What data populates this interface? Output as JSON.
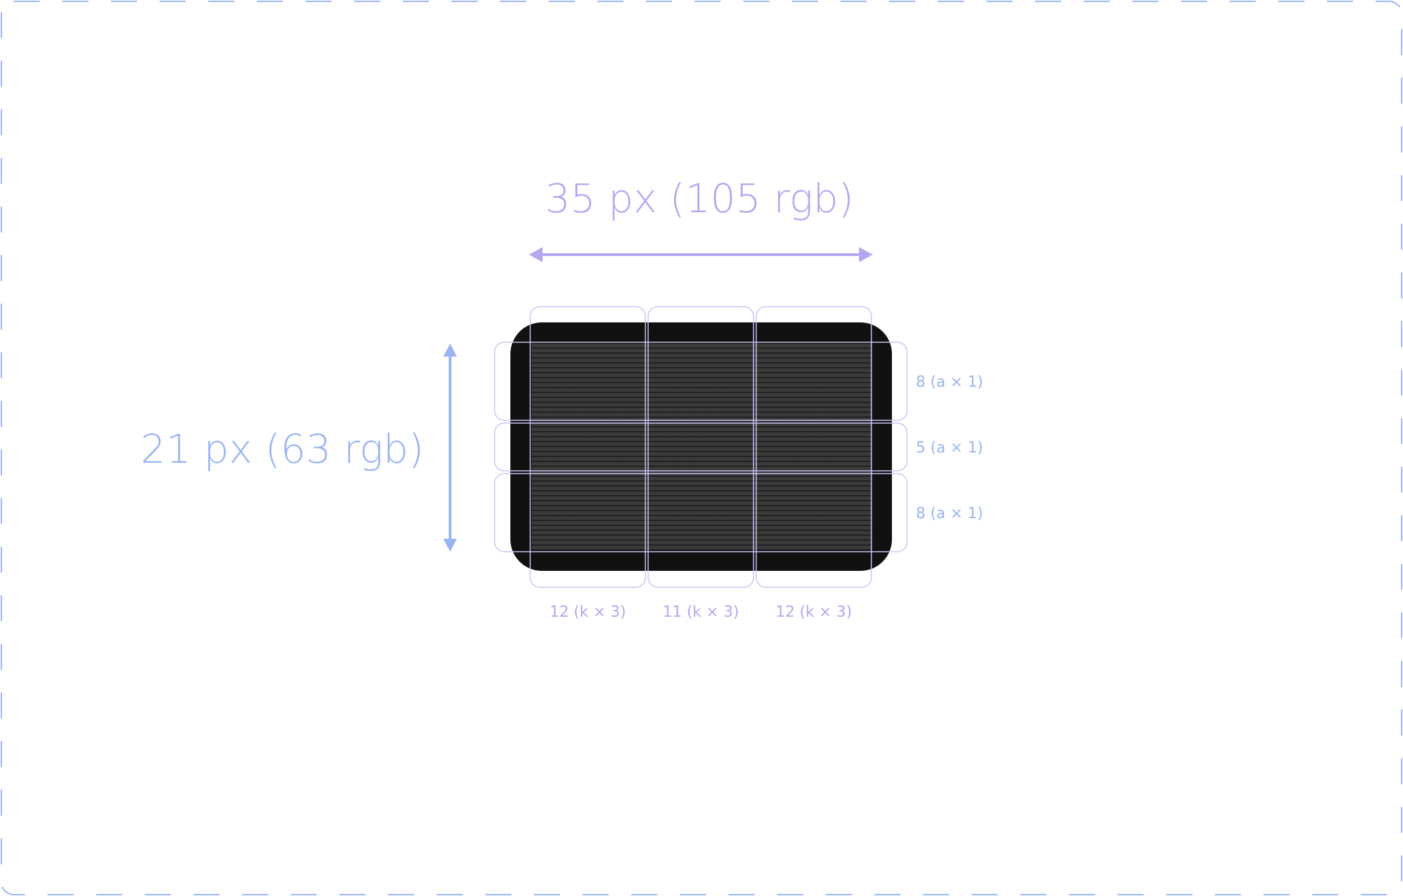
{
  "width_label": "35 px (105 rgb)",
  "height_label": "21 px (63 rgb)",
  "columns": [
    {
      "count": 12,
      "label": "12 (k × 3)"
    },
    {
      "count": 11,
      "label": "11 (k × 3)"
    },
    {
      "count": 12,
      "label": "12 (k × 3)"
    }
  ],
  "rows": [
    {
      "count": 8,
      "label": "8 (a × 1)"
    },
    {
      "count": 5,
      "label": "5 (a × 1)"
    },
    {
      "count": 8,
      "label": "8 (a × 1)"
    }
  ],
  "colors": {
    "border": "#9db4f4",
    "purple": "#b3a7f2",
    "blue": "#9bb5f2",
    "screen": "#111111",
    "pixel_dot": "#3a3a3a",
    "guide": "#c9c6f4"
  }
}
